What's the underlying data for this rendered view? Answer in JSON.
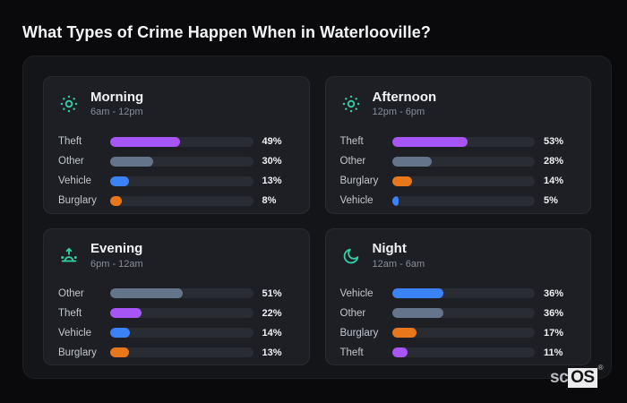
{
  "page": {
    "title": "What Types of Crime Happen When in Waterlooville?",
    "watermark": {
      "prefix": "sc",
      "boxed": "OS",
      "registered": "®"
    }
  },
  "colors": {
    "theft": "#a855f7",
    "other": "#64748b",
    "vehicle": "#3b82f6",
    "burglary": "#e8771b",
    "icon_accent": "#31d0a5",
    "track": "#2a2c33",
    "panel_bg": "#1d1f24",
    "board_bg": "#141519",
    "page_bg": "#0a0a0d"
  },
  "panels": [
    {
      "id": "morning",
      "icon": "sun-icon",
      "title": "Morning",
      "subtitle": "6am - 12pm",
      "rows": [
        {
          "label": "Theft",
          "value": 49,
          "pct": "49%",
          "color_key": "theft"
        },
        {
          "label": "Other",
          "value": 30,
          "pct": "30%",
          "color_key": "other"
        },
        {
          "label": "Vehicle",
          "value": 13,
          "pct": "13%",
          "color_key": "vehicle"
        },
        {
          "label": "Burglary",
          "value": 8,
          "pct": "8%",
          "color_key": "burglary"
        }
      ]
    },
    {
      "id": "afternoon",
      "icon": "sun-icon",
      "title": "Afternoon",
      "subtitle": "12pm - 6pm",
      "rows": [
        {
          "label": "Theft",
          "value": 53,
          "pct": "53%",
          "color_key": "theft"
        },
        {
          "label": "Other",
          "value": 28,
          "pct": "28%",
          "color_key": "other"
        },
        {
          "label": "Burglary",
          "value": 14,
          "pct": "14%",
          "color_key": "burglary"
        },
        {
          "label": "Vehicle",
          "value": 5,
          "pct": "5%",
          "color_key": "vehicle"
        }
      ]
    },
    {
      "id": "evening",
      "icon": "sunrise-icon",
      "title": "Evening",
      "subtitle": "6pm - 12am",
      "rows": [
        {
          "label": "Other",
          "value": 51,
          "pct": "51%",
          "color_key": "other"
        },
        {
          "label": "Theft",
          "value": 22,
          "pct": "22%",
          "color_key": "theft"
        },
        {
          "label": "Vehicle",
          "value": 14,
          "pct": "14%",
          "color_key": "vehicle"
        },
        {
          "label": "Burglary",
          "value": 13,
          "pct": "13%",
          "color_key": "burglary"
        }
      ]
    },
    {
      "id": "night",
      "icon": "moon-icon",
      "title": "Night",
      "subtitle": "12am - 6am",
      "rows": [
        {
          "label": "Vehicle",
          "value": 36,
          "pct": "36%",
          "color_key": "vehicle"
        },
        {
          "label": "Other",
          "value": 36,
          "pct": "36%",
          "color_key": "other"
        },
        {
          "label": "Burglary",
          "value": 17,
          "pct": "17%",
          "color_key": "burglary"
        },
        {
          "label": "Theft",
          "value": 11,
          "pct": "11%",
          "color_key": "theft"
        }
      ]
    }
  ],
  "chart_data": [
    {
      "type": "bar",
      "orientation": "horizontal",
      "title": "Morning",
      "subtitle": "6am - 12pm",
      "categories": [
        "Theft",
        "Other",
        "Vehicle",
        "Burglary"
      ],
      "values": [
        49,
        30,
        13,
        8
      ],
      "unit": "%",
      "xlim": [
        0,
        100
      ],
      "grid": false,
      "legend": false
    },
    {
      "type": "bar",
      "orientation": "horizontal",
      "title": "Afternoon",
      "subtitle": "12pm - 6pm",
      "categories": [
        "Theft",
        "Other",
        "Burglary",
        "Vehicle"
      ],
      "values": [
        53,
        28,
        14,
        5
      ],
      "unit": "%",
      "xlim": [
        0,
        100
      ],
      "grid": false,
      "legend": false
    },
    {
      "type": "bar",
      "orientation": "horizontal",
      "title": "Evening",
      "subtitle": "6pm - 12am",
      "categories": [
        "Other",
        "Theft",
        "Vehicle",
        "Burglary"
      ],
      "values": [
        51,
        22,
        14,
        13
      ],
      "unit": "%",
      "xlim": [
        0,
        100
      ],
      "grid": false,
      "legend": false
    },
    {
      "type": "bar",
      "orientation": "horizontal",
      "title": "Night",
      "subtitle": "12am - 6am",
      "categories": [
        "Vehicle",
        "Other",
        "Burglary",
        "Theft"
      ],
      "values": [
        36,
        36,
        17,
        11
      ],
      "unit": "%",
      "xlim": [
        0,
        100
      ],
      "grid": false,
      "legend": false
    }
  ]
}
